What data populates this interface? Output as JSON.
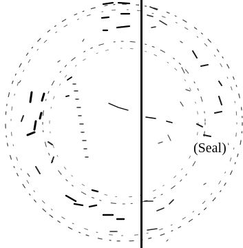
{
  "document": {
    "seal_label": "(Seal)",
    "seal_graphic_name": "faint-circular-seal-impression",
    "colors": {
      "ink": "#000000",
      "background": "#ffffff"
    }
  }
}
